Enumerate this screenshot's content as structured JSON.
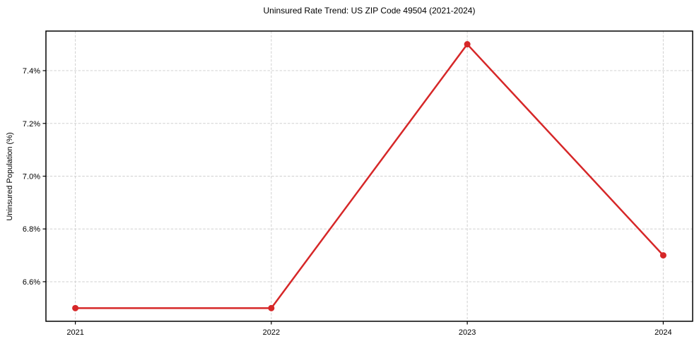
{
  "chart_data": {
    "type": "line",
    "title": "Uninsured Rate Trend: US ZIP Code 49504 (2021-2024)",
    "xlabel": "",
    "ylabel": "Uninsured Population (%)",
    "x": [
      2021,
      2022,
      2023,
      2024
    ],
    "values": [
      6.5,
      6.5,
      7.5,
      6.7
    ],
    "xlim": [
      2020.85,
      2024.15
    ],
    "ylim": [
      6.45,
      7.55
    ],
    "xticks": [
      2021,
      2022,
      2023,
      2024
    ],
    "xtick_labels": [
      "2021",
      "2022",
      "2023",
      "2024"
    ],
    "yticks": [
      6.6,
      6.8,
      7.0,
      7.2,
      7.4
    ],
    "ytick_labels": [
      "6.6%",
      "6.8%",
      "7.0%",
      "7.2%",
      "7.4%"
    ],
    "grid": true,
    "legend": false,
    "colors": {
      "line": "#d62728",
      "marker": "#d62728",
      "grid": "#d0d0d0",
      "axis": "#000000",
      "background": "#ffffff"
    }
  }
}
